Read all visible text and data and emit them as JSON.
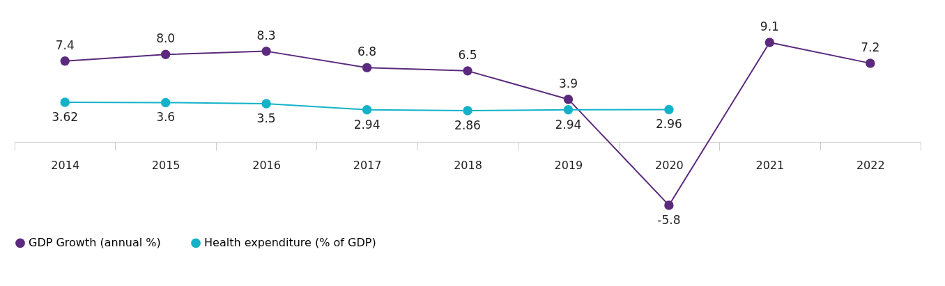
{
  "chart_data": {
    "type": "line",
    "categories": [
      "2014",
      "2015",
      "2016",
      "2017",
      "2018",
      "2019",
      "2020",
      "2021",
      "2022"
    ],
    "series": [
      {
        "name": "GDP Growth (annual %)",
        "color": "#5b2a7e",
        "values": [
          7.4,
          8.0,
          8.3,
          6.8,
          6.5,
          3.9,
          -5.8,
          9.1,
          7.2
        ],
        "value_labels": [
          "7.4",
          "8.0",
          "8.3",
          "6.8",
          "6.5",
          "3.9",
          "-5.8",
          "9.1",
          "7.2"
        ]
      },
      {
        "name": "Health expenditure (% of GDP)",
        "color": "#13b2c9",
        "values": [
          3.62,
          3.6,
          3.5,
          2.94,
          2.86,
          2.94,
          2.96,
          null,
          null
        ],
        "value_labels": [
          "3.62",
          "3.6",
          "3.5",
          "2.94",
          "2.86",
          "2.94",
          "2.96",
          null,
          null
        ]
      }
    ],
    "marker": "circle",
    "line_style": "solid",
    "grid": false,
    "legend": "bottom"
  }
}
